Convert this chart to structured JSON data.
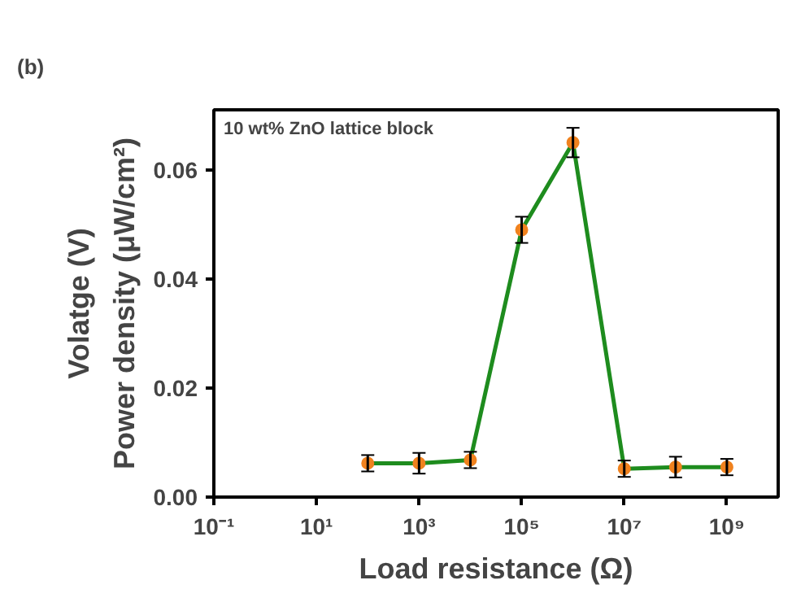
{
  "chart_data": {
    "type": "line",
    "xlabel": "Load resistance (Ω)",
    "ylabel": "Power density (μW/cm²)",
    "annotations": [
      "(b)",
      "10 wt% ZnO lattice block",
      "Volatge (V)"
    ],
    "x": [
      100,
      1000,
      10000,
      100000,
      1000000,
      10000000,
      100000000,
      1000000000
    ],
    "series": [
      {
        "color": "#1e8c1e",
        "colors": [
          "#f0821e",
          "#f0821e",
          "#f0821e",
          "#f0821e",
          "#f0821e",
          "#f0821e",
          "#f0821e",
          "#f0821e"
        ],
        "values": [
          0.0062,
          0.0062,
          0.0068,
          0.049,
          0.065,
          0.0052,
          0.0055,
          0.0055
        ],
        "errors": [
          0.0015,
          0.0019,
          0.0015,
          0.0024,
          0.0027,
          0.0015,
          0.0019,
          0.0015
        ]
      }
    ],
    "marker": "circle",
    "log": "x",
    "grid": false,
    "xlim": [
      0.1,
      10000000000.0
    ],
    "ylim": [
      0,
      0.071
    ],
    "xticks": [
      {
        "value": 0.1,
        "label": "10⁻¹"
      },
      {
        "value": 10,
        "label": "10¹"
      },
      {
        "value": 1000,
        "label": "10³"
      },
      {
        "value": 100000,
        "label": "10⁵"
      },
      {
        "value": 10000000,
        "label": "10⁷"
      },
      {
        "value": 1000000000,
        "label": "10⁹"
      }
    ],
    "yticks": [
      {
        "value": 0,
        "label": "0.00"
      },
      {
        "value": 0.02,
        "label": "0.02"
      },
      {
        "value": 0.04,
        "label": "0.04"
      },
      {
        "value": 0.06,
        "label": "0.06"
      }
    ]
  }
}
